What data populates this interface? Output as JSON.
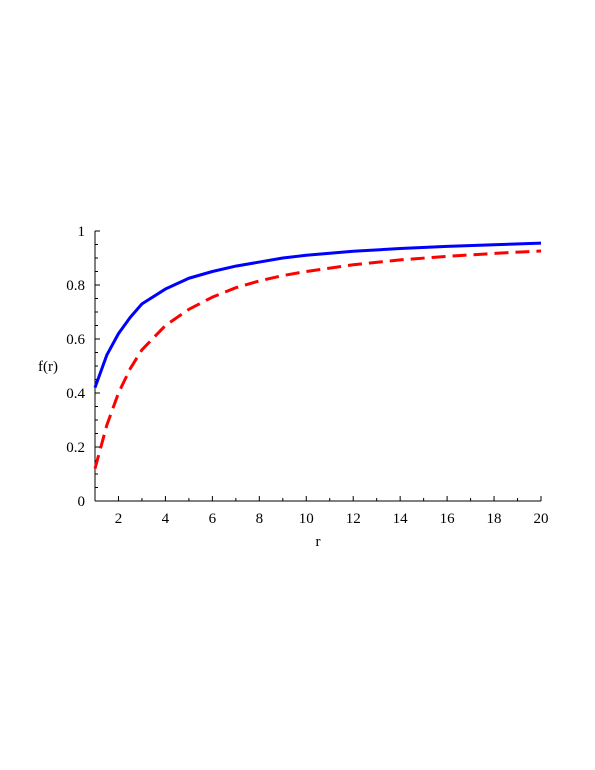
{
  "chart_data": {
    "type": "line",
    "xlabel": "r",
    "ylabel": "f(r)",
    "xlim": [
      1,
      20
    ],
    "ylim": [
      0,
      1
    ],
    "x_ticks": [
      2,
      4,
      6,
      8,
      10,
      12,
      14,
      16,
      18,
      20
    ],
    "y_ticks": [
      0,
      0.2,
      0.4,
      0.6,
      0.8,
      1
    ],
    "x_tick_labels": [
      "2",
      "4",
      "6",
      "8",
      "10",
      "12",
      "14",
      "16",
      "18",
      "20"
    ],
    "y_tick_labels": [
      "0",
      "0.2",
      "0.4",
      "0.6",
      "0.8",
      "1"
    ],
    "grid": false,
    "series": [
      {
        "color": "#0000ff",
        "style": "solid",
        "x": [
          1,
          1.5,
          2,
          2.5,
          3,
          4,
          5,
          6,
          7,
          8,
          9,
          10,
          12,
          14,
          16,
          18,
          20
        ],
        "y": [
          0.42,
          0.54,
          0.62,
          0.68,
          0.73,
          0.785,
          0.825,
          0.85,
          0.87,
          0.885,
          0.9,
          0.91,
          0.925,
          0.935,
          0.943,
          0.949,
          0.955
        ]
      },
      {
        "color": "#ff0000",
        "style": "dashed",
        "x": [
          1,
          1.5,
          2,
          2.5,
          3,
          4,
          5,
          6,
          7,
          8,
          9,
          10,
          12,
          14,
          16,
          18,
          20
        ],
        "y": [
          0.12,
          0.28,
          0.4,
          0.49,
          0.56,
          0.65,
          0.71,
          0.755,
          0.79,
          0.815,
          0.835,
          0.85,
          0.875,
          0.893,
          0.906,
          0.917,
          0.926
        ]
      }
    ]
  }
}
